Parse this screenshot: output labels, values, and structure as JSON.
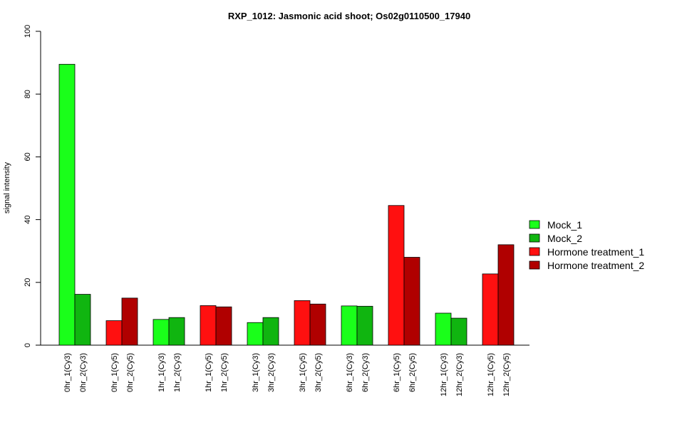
{
  "chart_data": {
    "type": "bar",
    "title": "RXP_1012: Jasmonic acid shoot; Os02g0110500_17940",
    "xlabel": "",
    "ylabel": "signal intensity",
    "ylim": [
      0,
      100
    ],
    "yticks": [
      "0",
      "20",
      "40",
      "60",
      "80",
      "100"
    ],
    "grid": false,
    "legend_position": "right",
    "groups": [
      {
        "labels": [
          "0hr_1(Cy3)",
          "0hr_2(Cy3)"
        ],
        "values": [
          89.5,
          16.2
        ],
        "colors": [
          "#1aff1a",
          "#10b510"
        ]
      },
      {
        "labels": [
          "0hr_1(Cy5)",
          "0hr_2(Cy5)"
        ],
        "values": [
          7.8,
          15.0
        ],
        "colors": [
          "#ff1010",
          "#b00000"
        ]
      },
      {
        "labels": [
          "1hr_1(Cy3)",
          "1hr_2(Cy3)"
        ],
        "values": [
          8.2,
          8.8
        ],
        "colors": [
          "#1aff1a",
          "#10b510"
        ]
      },
      {
        "labels": [
          "1hr_1(Cy5)",
          "1hr_2(Cy5)"
        ],
        "values": [
          12.6,
          12.2
        ],
        "colors": [
          "#ff1010",
          "#b00000"
        ]
      },
      {
        "labels": [
          "3hr_1(Cy3)",
          "3hr_2(Cy3)"
        ],
        "values": [
          7.2,
          8.8
        ],
        "colors": [
          "#1aff1a",
          "#10b510"
        ]
      },
      {
        "labels": [
          "3hr_1(Cy5)",
          "3hr_2(Cy5)"
        ],
        "values": [
          14.2,
          13.1
        ],
        "colors": [
          "#ff1010",
          "#b00000"
        ]
      },
      {
        "labels": [
          "6hr_1(Cy3)",
          "6hr_2(Cy3)"
        ],
        "values": [
          12.5,
          12.4
        ],
        "colors": [
          "#1aff1a",
          "#10b510"
        ]
      },
      {
        "labels": [
          "6hr_1(Cy5)",
          "6hr_2(Cy5)"
        ],
        "values": [
          44.5,
          28.0
        ],
        "colors": [
          "#ff1010",
          "#b00000"
        ]
      },
      {
        "labels": [
          "12hr_1(Cy3)",
          "12hr_2(Cy3)"
        ],
        "values": [
          10.2,
          8.6
        ],
        "colors": [
          "#1aff1a",
          "#10b510"
        ]
      },
      {
        "labels": [
          "12hr_1(Cy5)",
          "12hr_2(Cy5)"
        ],
        "values": [
          22.7,
          32.0
        ],
        "colors": [
          "#ff1010",
          "#b00000"
        ]
      }
    ],
    "legend": [
      {
        "label": "Mock_1",
        "color": "#1aff1a"
      },
      {
        "label": "Mock_2",
        "color": "#10b510"
      },
      {
        "label": "Hormone treatment_1",
        "color": "#ff1010"
      },
      {
        "label": "Hormone treatment_2",
        "color": "#b00000"
      }
    ]
  }
}
